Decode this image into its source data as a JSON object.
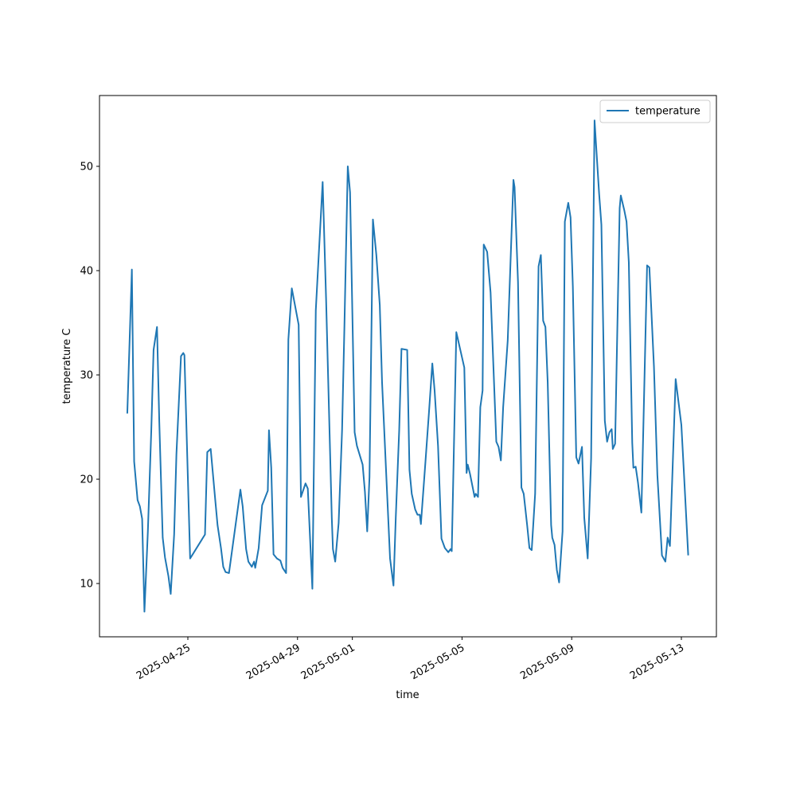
{
  "chart_data": {
    "type": "line",
    "xlabel": "time",
    "ylabel": "temperature C",
    "x": [
      "2025-04-22T19:00",
      "2025-04-22T23:00",
      "2025-04-23T01:00",
      "2025-04-23T04:00",
      "2025-04-23T06:00",
      "2025-04-23T08:00",
      "2025-04-23T10:00",
      "2025-04-23T13:00",
      "2025-04-23T16:00",
      "2025-04-23T18:00",
      "2025-04-23T21:00",
      "2025-04-23T23:00",
      "2025-04-24T02:00",
      "2025-04-24T04:00",
      "2025-04-24T07:00",
      "2025-04-24T09:00",
      "2025-04-24T12:00",
      "2025-04-24T14:00",
      "2025-04-24T18:00",
      "2025-04-24T20:00",
      "2025-04-24T21:00",
      "2025-04-25T02:00",
      "2025-04-25T15:00",
      "2025-04-25T17:00",
      "2025-04-25T20:00",
      "2025-04-26T00:00",
      "2025-04-26T02:00",
      "2025-04-26T05:00",
      "2025-04-26T07:00",
      "2025-04-26T09:00",
      "2025-04-26T12:00",
      "2025-04-26T22:00",
      "2025-04-27T00:00",
      "2025-04-27T03:00",
      "2025-04-27T05:00",
      "2025-04-27T08:00",
      "2025-04-27T10:00",
      "2025-04-27T11:00",
      "2025-04-27T14:00",
      "2025-04-27T17:00",
      "2025-04-27T22:00",
      "2025-04-27T23:00",
      "2025-04-28T01:00",
      "2025-04-28T03:00",
      "2025-04-28T06:00",
      "2025-04-28T09:00",
      "2025-04-28T11:00",
      "2025-04-28T14:00",
      "2025-04-28T16:00",
      "2025-04-28T19:00",
      "2025-04-29T01:00",
      "2025-04-29T03:00",
      "2025-04-29T07:00",
      "2025-04-29T09:00",
      "2025-04-29T13:00",
      "2025-04-29T16:00",
      "2025-04-29T22:00",
      "2025-04-30T01:00",
      "2025-04-30T06:00",
      "2025-04-30T07:00",
      "2025-04-30T09:00",
      "2025-04-30T12:00",
      "2025-04-30T15:00",
      "2025-04-30T17:00",
      "2025-04-30T20:00",
      "2025-04-30T22:00",
      "2025-05-01T02:00",
      "2025-05-01T04:00",
      "2025-05-01T09:00",
      "2025-05-01T11:00",
      "2025-05-01T13:00",
      "2025-05-01T15:00",
      "2025-05-01T18:00",
      "2025-05-01T21:00",
      "2025-05-02T00:00",
      "2025-05-02T02:00",
      "2025-05-02T09:00",
      "2025-05-02T12:00",
      "2025-05-02T14:00",
      "2025-05-02T17:00",
      "2025-05-02T19:00",
      "2025-05-03T00:00",
      "2025-05-03T02:00",
      "2025-05-03T04:00",
      "2025-05-03T07:00",
      "2025-05-03T09:00",
      "2025-05-03T11:00",
      "2025-05-03T12:00",
      "2025-05-03T16:00",
      "2025-05-03T19:00",
      "2025-05-03T22:00",
      "2025-05-04T00:00",
      "2025-05-04T03:00",
      "2025-05-04T06:00",
      "2025-05-04T09:00",
      "2025-05-04T12:00",
      "2025-05-04T14:00",
      "2025-05-04T15:00",
      "2025-05-04T19:00",
      "2025-05-05T02:00",
      "2025-05-05T04:00",
      "2025-05-05T05:00",
      "2025-05-05T07:00",
      "2025-05-05T11:00",
      "2025-05-05T12:00",
      "2025-05-05T14:00",
      "2025-05-05T16:00",
      "2025-05-05T18:00",
      "2025-05-05T19:00",
      "2025-05-05T22:00",
      "2025-05-06T01:00",
      "2025-05-06T06:00",
      "2025-05-06T08:00",
      "2025-05-06T10:00",
      "2025-05-06T12:00",
      "2025-05-06T16:00",
      "2025-05-06T21:00",
      "2025-05-06T22:00",
      "2025-05-07T01:00",
      "2025-05-07T04:00",
      "2025-05-07T06:00",
      "2025-05-07T09:00",
      "2025-05-07T11:00",
      "2025-05-07T13:00",
      "2025-05-07T16:00",
      "2025-05-07T19:00",
      "2025-05-07T21:00",
      "2025-05-07T23:00",
      "2025-05-08T01:00",
      "2025-05-08T03:00",
      "2025-05-08T06:00",
      "2025-05-08T07:00",
      "2025-05-08T09:00",
      "2025-05-08T11:00",
      "2025-05-08T13:00",
      "2025-05-08T16:00",
      "2025-05-08T18:00",
      "2025-05-08T21:00",
      "2025-05-08T23:00",
      "2025-05-09T01:00",
      "2025-05-09T04:00",
      "2025-05-09T06:00",
      "2025-05-09T09:00",
      "2025-05-09T11:00",
      "2025-05-09T14:00",
      "2025-05-09T17:00",
      "2025-05-09T20:00",
      "2025-05-10T00:00",
      "2025-05-10T02:00",
      "2025-05-10T05:00",
      "2025-05-10T07:00",
      "2025-05-10T09:00",
      "2025-05-10T11:00",
      "2025-05-10T12:00",
      "2025-05-10T14:00",
      "2025-05-10T18:00",
      "2025-05-10T19:00",
      "2025-05-10T22:00",
      "2025-05-11T00:00",
      "2025-05-11T02:00",
      "2025-05-11T05:00",
      "2025-05-11T06:00",
      "2025-05-11T08:00",
      "2025-05-11T10:00",
      "2025-05-11T13:00",
      "2025-05-11T18:00",
      "2025-05-11T20:00",
      "2025-05-12T00:00",
      "2025-05-12T03:00",
      "2025-05-12T07:00",
      "2025-05-12T10:00",
      "2025-05-12T12:00",
      "2025-05-12T14:00",
      "2025-05-12T19:00",
      "2025-05-13T00:00",
      "2025-05-13T02:00",
      "2025-05-13T06:00"
    ],
    "series": [
      {
        "name": "temperature",
        "color": "#1f77b4",
        "values": [
          26.3,
          40.1,
          21.7,
          18.0,
          17.4,
          16.2,
          7.3,
          15.0,
          24.7,
          32.4,
          34.6,
          25.5,
          14.4,
          12.5,
          10.7,
          9.0,
          14.7,
          22.4,
          31.8,
          32.1,
          31.9,
          12.4,
          14.7,
          22.6,
          22.9,
          18.0,
          15.6,
          13.4,
          11.6,
          11.1,
          11.0,
          19.0,
          17.4,
          13.3,
          12.1,
          11.6,
          12.1,
          11.5,
          13.4,
          17.5,
          18.9,
          24.7,
          21.1,
          12.8,
          12.4,
          12.2,
          11.5,
          11.0,
          33.4,
          38.3,
          34.8,
          18.3,
          19.6,
          19.1,
          9.5,
          36.2,
          48.5,
          37.3,
          16.3,
          13.3,
          12.1,
          15.8,
          24.7,
          34.4,
          50.0,
          47.5,
          24.5,
          23.2,
          21.4,
          18.8,
          15.0,
          20.2,
          44.9,
          41.5,
          36.7,
          29.3,
          12.4,
          9.8,
          16.3,
          24.7,
          32.5,
          32.4,
          20.9,
          18.6,
          17.1,
          16.6,
          16.6,
          15.7,
          21.7,
          26.3,
          31.1,
          28.5,
          23.2,
          14.3,
          13.4,
          13.0,
          13.3,
          13.1,
          34.1,
          30.7,
          20.6,
          21.4,
          20.5,
          18.3,
          18.6,
          18.3,
          26.9,
          28.5,
          42.5,
          41.8,
          37.9,
          23.6,
          23.1,
          21.8,
          26.9,
          33.3,
          48.7,
          48.0,
          38.9,
          19.2,
          18.6,
          15.6,
          13.4,
          13.2,
          18.6,
          40.4,
          41.5,
          35.2,
          34.6,
          29.3,
          15.6,
          14.4,
          13.7,
          11.3,
          10.1,
          15.0,
          44.7,
          46.5,
          45.1,
          38.5,
          22.1,
          21.5,
          23.1,
          16.3,
          12.4,
          22.0,
          54.4,
          47.4,
          44.4,
          25.6,
          23.6,
          24.5,
          24.8,
          22.9,
          23.4,
          46.0,
          47.2,
          45.8,
          44.7,
          40.8,
          23.5,
          21.1,
          21.2,
          19.7,
          16.8,
          40.5,
          40.3,
          30.8,
          20.4,
          12.7,
          12.1,
          14.4,
          13.6,
          29.6,
          25.2,
          21.1,
          12.7
        ]
      }
    ],
    "xlim": [
      "2025-04-21T18:40",
      "2025-05-14T06:40"
    ],
    "xticks": [
      "2025-04-25",
      "2025-04-29",
      "2025-05-01",
      "2025-05-05",
      "2025-05-09",
      "2025-05-13"
    ],
    "ylim": [
      4.89,
      56.79
    ],
    "yticks": [
      10,
      20,
      30,
      40,
      50
    ],
    "grid": false,
    "legend": "upper right"
  }
}
